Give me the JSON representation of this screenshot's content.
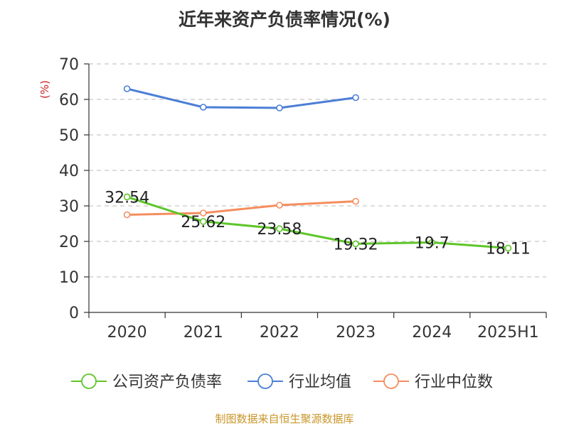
{
  "chart_data": {
    "type": "line",
    "title": "近年来资产负债率情况(%)",
    "ylabel": "(%)",
    "xlabel": "",
    "categories": [
      "2020",
      "2021",
      "2022",
      "2023",
      "2024",
      "2025H1"
    ],
    "ylim": [
      0,
      70
    ],
    "yticks": [
      0,
      10,
      20,
      30,
      40,
      50,
      60,
      70
    ],
    "grid": "horizontal dashed",
    "legend_position": "bottom",
    "series": [
      {
        "name": "公司资产负债率",
        "color": "#5ec629",
        "values": [
          32.54,
          25.62,
          23.58,
          19.32,
          19.7,
          18.11
        ],
        "labels": [
          "32.54",
          "25.62",
          "23.58",
          "19.32",
          "19.7",
          "18.11"
        ]
      },
      {
        "name": "行业均值",
        "color": "#4b7fd6",
        "values": [
          63.0,
          57.8,
          57.6,
          60.5,
          null,
          null
        ]
      },
      {
        "name": "行业中位数",
        "color": "#f58d5e",
        "values": [
          27.5,
          28.0,
          30.2,
          31.3,
          null,
          null
        ]
      }
    ]
  },
  "source": "制图数据来自恒生聚源数据库"
}
